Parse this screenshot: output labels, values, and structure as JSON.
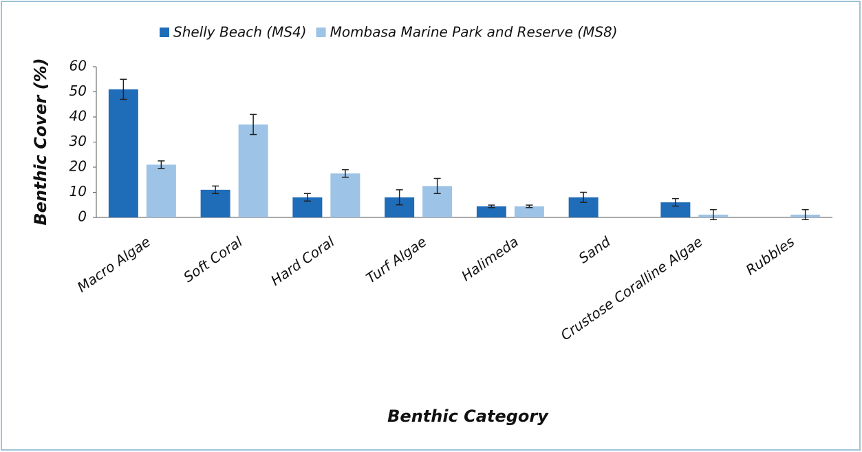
{
  "chart_data": {
    "type": "bar",
    "x_label": "Benthic Category",
    "y_label": "Benthic Cover (%)",
    "categories": [
      "Macro Algae",
      "Soft Coral",
      "Hard Coral",
      "Turf Algae",
      "Halimeda",
      "Sand",
      "Crustose Coralline Algae",
      "Rubbles"
    ],
    "series": [
      {
        "name": "Shelly Beach (MS4)",
        "color": "#1f6cb8",
        "values": [
          51,
          11,
          8,
          8,
          4.4,
          8,
          6,
          0
        ],
        "errors": [
          4,
          1.5,
          1.5,
          3,
          0.5,
          2,
          1.5,
          null
        ]
      },
      {
        "name": "Mombasa Marine Park and Reserve (MS8)",
        "color": "#9dc3e6",
        "values": [
          21,
          37,
          17.5,
          12.5,
          4.4,
          0,
          1.1,
          1.1
        ],
        "errors": [
          1.5,
          4,
          1.5,
          3,
          0.5,
          null,
          2,
          2
        ]
      }
    ],
    "ylim": [
      0,
      60
    ],
    "yticks": [
      0,
      10,
      20,
      30,
      40,
      50,
      60
    ],
    "legend": "top"
  }
}
